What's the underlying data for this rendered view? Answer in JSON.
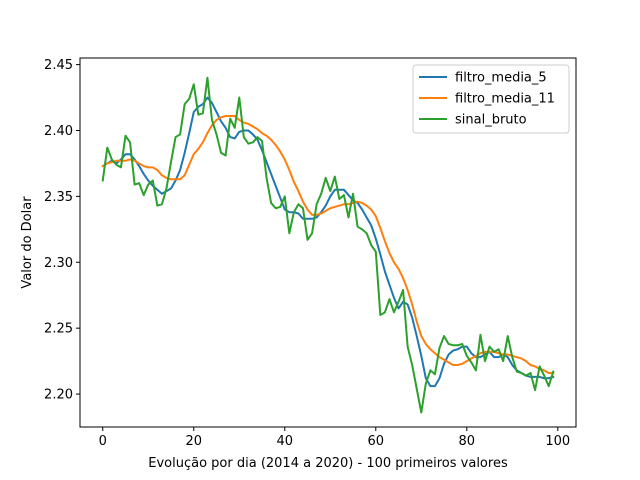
{
  "chart_data": {
    "type": "line",
    "title": "",
    "xlabel": "Evolução por dia (2014 a 2020) - 100 primeiros valores",
    "ylabel": "Valor do Dolar",
    "xlim": [
      -5,
      104
    ],
    "ylim": [
      2.175,
      2.455
    ],
    "x_ticks": [
      0,
      20,
      40,
      60,
      80,
      100
    ],
    "x_tick_labels": [
      "0",
      "20",
      "40",
      "60",
      "80",
      "100"
    ],
    "y_ticks": [
      2.2,
      2.25,
      2.3,
      2.35,
      2.4,
      2.45
    ],
    "y_tick_labels": [
      "2.20",
      "2.25",
      "2.30",
      "2.35",
      "2.40",
      "2.45"
    ],
    "grid": false,
    "legend_position": "top-right",
    "series": [
      {
        "name": "filtro_media_5",
        "color": "#1f77b4",
        "x": [
          0,
          1,
          2,
          3,
          4,
          5,
          6,
          7,
          8,
          9,
          10,
          11,
          12,
          13,
          14,
          15,
          16,
          17,
          18,
          19,
          20,
          21,
          22,
          23,
          24,
          25,
          26,
          27,
          28,
          29,
          30,
          31,
          32,
          33,
          34,
          35,
          36,
          37,
          38,
          39,
          40,
          41,
          42,
          43,
          44,
          45,
          46,
          47,
          48,
          49,
          50,
          51,
          52,
          53,
          54,
          55,
          56,
          57,
          58,
          59,
          60,
          61,
          62,
          63,
          64,
          65,
          66,
          67,
          68,
          69,
          70,
          71,
          72,
          73,
          74,
          75,
          76,
          77,
          78,
          79,
          80,
          81,
          82,
          83,
          84,
          85,
          86,
          87,
          88,
          89,
          90,
          91,
          92,
          93,
          94,
          95,
          96,
          97,
          98,
          99
        ],
        "values": [
          2.373,
          2.375,
          2.377,
          2.375,
          2.378,
          2.382,
          2.382,
          2.378,
          2.373,
          2.367,
          2.362,
          2.358,
          2.355,
          2.352,
          2.354,
          2.356,
          2.362,
          2.37,
          2.383,
          2.398,
          2.414,
          2.418,
          2.42,
          2.425,
          2.421,
          2.414,
          2.407,
          2.402,
          2.395,
          2.394,
          2.399,
          2.4,
          2.4,
          2.397,
          2.393,
          2.385,
          2.376,
          2.367,
          2.358,
          2.349,
          2.34,
          2.338,
          2.338,
          2.337,
          2.333,
          2.333,
          2.333,
          2.334,
          2.338,
          2.343,
          2.35,
          2.355,
          2.355,
          2.355,
          2.351,
          2.347,
          2.345,
          2.34,
          2.334,
          2.328,
          2.318,
          2.306,
          2.293,
          2.283,
          2.273,
          2.265,
          2.27,
          2.268,
          2.258,
          2.244,
          2.229,
          2.212,
          2.206,
          2.206,
          2.212,
          2.223,
          2.23,
          2.233,
          2.234,
          2.236,
          2.236,
          2.231,
          2.228,
          2.228,
          2.23,
          2.232,
          2.228,
          2.228,
          2.23,
          2.228,
          2.222,
          2.218,
          2.216,
          2.214,
          2.213,
          2.213,
          2.213,
          2.212,
          2.212,
          2.213
        ]
      },
      {
        "name": "filtro_media_11",
        "color": "#ff7f0e",
        "x": [
          0,
          1,
          2,
          3,
          4,
          5,
          6,
          7,
          8,
          9,
          10,
          11,
          12,
          13,
          14,
          15,
          16,
          17,
          18,
          19,
          20,
          21,
          22,
          23,
          24,
          25,
          26,
          27,
          28,
          29,
          30,
          31,
          32,
          33,
          34,
          35,
          36,
          37,
          38,
          39,
          40,
          41,
          42,
          43,
          44,
          45,
          46,
          47,
          48,
          49,
          50,
          51,
          52,
          53,
          54,
          55,
          56,
          57,
          58,
          59,
          60,
          61,
          62,
          63,
          64,
          65,
          66,
          67,
          68,
          69,
          70,
          71,
          72,
          73,
          74,
          75,
          76,
          77,
          78,
          79,
          80,
          81,
          82,
          83,
          84,
          85,
          86,
          87,
          88,
          89,
          90,
          91,
          92,
          93,
          94,
          95,
          96,
          97,
          98,
          99
        ],
        "values": [
          2.373,
          2.375,
          2.376,
          2.377,
          2.377,
          2.377,
          2.378,
          2.377,
          2.375,
          2.373,
          2.372,
          2.372,
          2.37,
          2.366,
          2.364,
          2.363,
          2.363,
          2.363,
          2.366,
          2.374,
          2.382,
          2.386,
          2.391,
          2.398,
          2.404,
          2.408,
          2.41,
          2.411,
          2.411,
          2.411,
          2.408,
          2.406,
          2.405,
          2.403,
          2.401,
          2.398,
          2.396,
          2.393,
          2.389,
          2.384,
          2.378,
          2.37,
          2.361,
          2.354,
          2.346,
          2.34,
          2.336,
          2.336,
          2.337,
          2.339,
          2.341,
          2.342,
          2.343,
          2.344,
          2.344,
          2.345,
          2.346,
          2.345,
          2.343,
          2.34,
          2.335,
          2.326,
          2.316,
          2.307,
          2.3,
          2.295,
          2.288,
          2.279,
          2.268,
          2.255,
          2.244,
          2.238,
          2.234,
          2.231,
          2.228,
          2.226,
          2.224,
          2.222,
          2.222,
          2.223,
          2.225,
          2.227,
          2.229,
          2.231,
          2.232,
          2.232,
          2.232,
          2.231,
          2.23,
          2.23,
          2.229,
          2.228,
          2.227,
          2.225,
          2.222,
          2.221,
          2.219,
          2.218,
          2.216,
          2.216
        ]
      },
      {
        "name": "sinal_bruto",
        "color": "#2ca02c",
        "x": [
          0,
          1,
          2,
          3,
          4,
          5,
          6,
          7,
          8,
          9,
          10,
          11,
          12,
          13,
          14,
          15,
          16,
          17,
          18,
          19,
          20,
          21,
          22,
          23,
          24,
          25,
          26,
          27,
          28,
          29,
          30,
          31,
          32,
          33,
          34,
          35,
          36,
          37,
          38,
          39,
          40,
          41,
          42,
          43,
          44,
          45,
          46,
          47,
          48,
          49,
          50,
          51,
          52,
          53,
          54,
          55,
          56,
          57,
          58,
          59,
          60,
          61,
          62,
          63,
          64,
          65,
          66,
          67,
          68,
          69,
          70,
          71,
          72,
          73,
          74,
          75,
          76,
          77,
          78,
          79,
          80,
          81,
          82,
          83,
          84,
          85,
          86,
          87,
          88,
          89,
          90,
          91,
          92,
          93,
          94,
          95,
          96,
          97,
          98,
          99
        ],
        "values": [
          2.362,
          2.387,
          2.378,
          2.374,
          2.372,
          2.396,
          2.391,
          2.359,
          2.36,
          2.351,
          2.359,
          2.362,
          2.343,
          2.344,
          2.356,
          2.376,
          2.395,
          2.397,
          2.42,
          2.424,
          2.435,
          2.412,
          2.413,
          2.44,
          2.408,
          2.397,
          2.383,
          2.381,
          2.409,
          2.402,
          2.425,
          2.395,
          2.39,
          2.391,
          2.395,
          2.392,
          2.364,
          2.345,
          2.341,
          2.342,
          2.35,
          2.322,
          2.338,
          2.344,
          2.341,
          2.317,
          2.322,
          2.344,
          2.352,
          2.364,
          2.354,
          2.365,
          2.348,
          2.351,
          2.334,
          2.352,
          2.327,
          2.325,
          2.322,
          2.313,
          2.308,
          2.26,
          2.262,
          2.272,
          2.262,
          2.27,
          2.279,
          2.236,
          2.222,
          2.204,
          2.186,
          2.208,
          2.218,
          2.215,
          2.235,
          2.244,
          2.238,
          2.237,
          2.237,
          2.238,
          2.229,
          2.224,
          2.218,
          2.245,
          2.225,
          2.236,
          2.232,
          2.234,
          2.225,
          2.244,
          2.228,
          2.217,
          2.216,
          2.214,
          2.216,
          2.203,
          2.221,
          2.214,
          2.206,
          2.217
        ]
      }
    ]
  }
}
